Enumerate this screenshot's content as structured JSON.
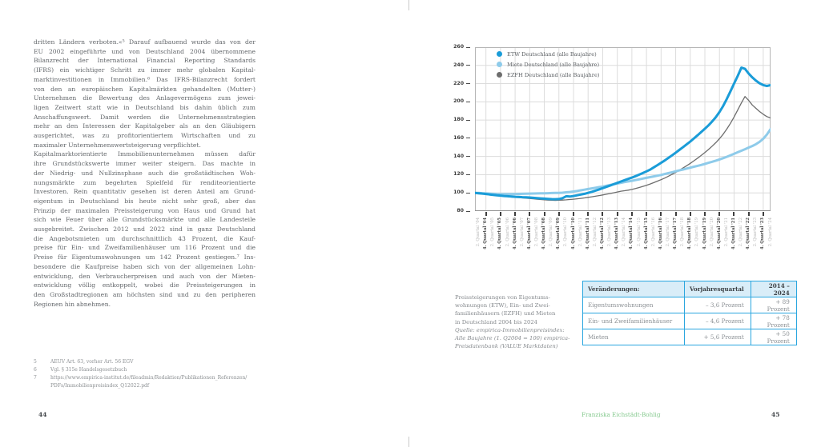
{
  "page_left": {
    "paragraphs": [
      {
        "lines": [
          "dritten Ländern verboten.«⁵ Darauf aufbauend wurde das von der",
          "EU 2002 eingeführte und von Deutschland 2004 übernommene",
          "Bilanzrecht der International Financial Reporting Standards",
          "(IFRS) ein wichtiger Schritt zu immer mehr globalen Kapital-",
          "marktinvestitionen in Immobilien.⁶ Das IFRS-Bilanzrecht fordert",
          "von den an europäischen Kapitalmärkten gehandelten (Mutter-)",
          "Unternehmen die Bewertung des Anlagevermögens zum jewei-",
          "ligen Zeitwert statt wie in Deutschland bis dahin üblich zum",
          "Anschaffungswert. Damit werden die Unternehmensstrategien",
          "mehr an den Interessen der Kapitalgeber als an den Gläubigern",
          "ausgerichtet, was zu profitorientiertem Wirtschaften und zu",
          "maximaler Unternehmenswertsteigerung verpflichtet."
        ]
      },
      {
        "lines": [
          "Kapitalmarktorientierte Immobilienunternehmen müssen dafür",
          "ihre Grundstückswerte immer weiter steigern. Das machte in",
          "der Niedrig- und Nullzinsphase auch die großstädtischen Woh-",
          "nungsmärkte zum begehrten Spielfeld für renditeorientierte",
          "Investoren. Rein quantitativ gesehen ist deren Anteil am Grund-",
          "eigentum in Deutschland bis heute nicht sehr groß, aber das",
          "Prinzip der maximalen Preissteigerung von Haus und Grund hat",
          "sich wie Feuer über alle Grundstücksmärkte und alle Landesteile",
          "ausgebreitet. Zwischen 2012 und 2022 sind in ganz Deutschland",
          "die Angebotsmieten um durchschnittlich 43 Prozent, die Kauf-",
          "preise für Ein- und Zweifamilienhäuser um 116 Prozent und die",
          "Preise für Eigentumswohnungen um 142 Prozent gestiegen.⁷ Ins-",
          "besondere die Kaufpreise haben sich von der allgemeinen Lohn-",
          "entwicklung, den Verbraucherpreisen und auch von der Mieten-",
          "entwicklung völlig entkoppelt, wobei die Preissteigerungen in",
          "den Großstadtregionen am höchsten sind und zu den peripheren",
          "Regionen hin abnehmen."
        ]
      }
    ],
    "footnotes": [
      {
        "num": "5",
        "lines": [
          "AEUV Art. 63, vorher Art. 56 EGV"
        ]
      },
      {
        "num": "6",
        "lines": [
          "Vgl. § 315e Handelsgesetzbuch"
        ]
      },
      {
        "num": "7",
        "lines": [
          "https://www.empirica-institut.de/fileadmin/Redaktion/Publikationen_Referenzen/",
          "PDFs/Immobilienpreisindex_Q12022.pdf"
        ]
      }
    ],
    "page_number": "44"
  },
  "page_right": {
    "chart_data": {
      "type": "line",
      "title": "",
      "description": "Preissteigerungen von Eigentumswohnungen (ETW), Ein- und Zweifamilienhäusern (EZFH) und Mieten in Deutschland 2004 bis 2024, Index 1. Q2004 = 100",
      "ylim": [
        80,
        260
      ],
      "y_ticks": [
        260,
        240,
        220,
        200,
        180,
        160,
        140,
        120,
        100,
        80
      ],
      "x_start": "1. Quartal 2004",
      "x_end": "2. Quartal 2024",
      "grid": "horizontal every 20, vertical yearly",
      "legend_position": "top-left",
      "x_tick_labels": [
        "2. Quartal '04",
        "4. Quartal '04",
        "2. Quartal '05",
        "4. Quartal '05",
        "2. Quartal '06",
        "4. Quartal '06",
        "2. Quartal '07",
        "4. Quartal '07",
        "2. Quartal '08",
        "4. Quartal '08",
        "2. Quartal '09",
        "4. Quartal '09",
        "2. Quartal '10",
        "4. Quartal '10",
        "2. Quartal '11",
        "4. Quartal '11",
        "2. Quartal '12",
        "4. Quartal '12",
        "2. Quartal '13",
        "4. Quartal '13",
        "2. Quartal '14",
        "4. Quartal '14",
        "2. Quartal '15",
        "4. Quartal '15",
        "2. Quartal '16",
        "4. Quartal '16",
        "2. Quartal '17",
        "4. Quartal '17",
        "2. Quartal '18",
        "4. Quartal '18",
        "2. Quartal '19",
        "4. Quartal '19",
        "2. Quartal '20",
        "4. Quartal '20",
        "2. Quartal '21",
        "4. Quartal '21",
        "2. Quartal '22",
        "4. Quartal '22",
        "2. Quartal '23",
        "4. Quartal '23",
        "2. Quartal '24"
      ],
      "series": [
        {
          "name": "ETW Deutschland (alle Baujahre)",
          "color": "#1a9cd8",
          "stroke_width": 3,
          "values": [
            100,
            99.6,
            99.2,
            98.8,
            98.3,
            97.8,
            97.4,
            97.0,
            96.6,
            96.3,
            96.0,
            95.7,
            95.5,
            95.3,
            95.1,
            94.9,
            94.6,
            94.3,
            94.0,
            93.7,
            93.4,
            93.2,
            93.1,
            93.3,
            94.2,
            96.3,
            96.0,
            96.6,
            97.4,
            98.2,
            99.0,
            100.0,
            101.2,
            102.5,
            103.8,
            105.2,
            106.6,
            108.0,
            109.5,
            111.0,
            112.5,
            114.0,
            115.4,
            116.8,
            118.4,
            120.0,
            121.8,
            123.6,
            125.6,
            128.0,
            130.5,
            133.0,
            135.6,
            138.4,
            141.2,
            144.2,
            147.2,
            150.2,
            153.2,
            156.4,
            159.8,
            163.2,
            166.8,
            170.4,
            174.2,
            178.4,
            183.2,
            188.8,
            195.4,
            203.0,
            211.4,
            220.0,
            228.4,
            237.5,
            236.2,
            231.0,
            226.8,
            223.2,
            220.4,
            218.4,
            217.4,
            218.4
          ]
        },
        {
          "name": "Miete Deutschland (alle Baujahre)",
          "color": "#8ecbea",
          "stroke_width": 3,
          "values": [
            100,
            100,
            99.7,
            99.4,
            99.2,
            99.0,
            98.8,
            98.7,
            98.6,
            98.6,
            98.7,
            98.8,
            98.9,
            99.0,
            99.1,
            99.2,
            99.3,
            99.4,
            99.5,
            99.6,
            99.7,
            99.8,
            99.9,
            100.0,
            100.2,
            100.6,
            101.0,
            101.5,
            102.1,
            102.8,
            103.5,
            104.2,
            104.9,
            105.6,
            106.3,
            107.0,
            107.8,
            108.7,
            109.5,
            110.3,
            111.1,
            111.9,
            112.6,
            113.3,
            114.1,
            114.9,
            115.7,
            116.5,
            117.3,
            118.1,
            118.9,
            119.7,
            120.7,
            121.7,
            122.7,
            123.7,
            124.7,
            125.7,
            126.7,
            127.7,
            128.7,
            129.7,
            130.7,
            131.8,
            133.0,
            134.2,
            135.4,
            136.7,
            138.1,
            139.6,
            141.2,
            142.9,
            144.6,
            146.3,
            148.0,
            149.8,
            151.5,
            153.5,
            156.0,
            159.5,
            164.0,
            170.0
          ]
        },
        {
          "name": "EZFH Deutschland (alle Baujahre)",
          "color": "#6d6d6d",
          "stroke_width": 1.3,
          "values": [
            100,
            99.4,
            98.9,
            98.4,
            97.9,
            97.4,
            97.0,
            96.6,
            96.2,
            95.8,
            95.4,
            95.1,
            94.8,
            94.5,
            94.2,
            93.9,
            93.5,
            93.1,
            92.7,
            92.4,
            92.1,
            91.9,
            91.8,
            91.9,
            92.1,
            92.4,
            92.7,
            93.1,
            93.5,
            94.0,
            94.5,
            95.1,
            95.7,
            96.3,
            97.0,
            97.7,
            98.5,
            99.3,
            100.1,
            101.0,
            101.9,
            102.4,
            103.0,
            103.8,
            104.8,
            105.9,
            107.1,
            108.4,
            109.8,
            111.3,
            112.9,
            114.5,
            116.3,
            118.3,
            120.4,
            122.6,
            124.9,
            127.3,
            129.8,
            132.4,
            135.2,
            138.1,
            141.1,
            144.3,
            147.7,
            151.3,
            155.2,
            159.5,
            164.4,
            170.0,
            176.3,
            183.3,
            191.0,
            198.8,
            205.8,
            201.5,
            196.5,
            192.8,
            189.3,
            186.3,
            183.8,
            182.3
          ]
        }
      ]
    },
    "caption": {
      "lines": [
        "Preissteigerungen von Eigentums-",
        "wohnungen (ETW), Ein- und Zwei-",
        "familienhäusern (EZFH) und Mieten",
        "in Deutschland 2004 bis 2024"
      ],
      "source_lines": [
        "Quelle: empirica-Immobilienpreisindex:",
        "Alle Baujahre (1. Q2004 = 100) empirica-",
        "Preisdatenbank (VALUE Marktdaten)"
      ]
    },
    "table": {
      "header": [
        "Veränderungen:",
        "Vorjahresquartal",
        "2014 – 2024"
      ],
      "rows": [
        [
          "Eigentumswohnungen",
          "– 3,6 Prozent",
          "+ 89 Prozent"
        ],
        [
          "Ein- und Zweifamilienhäuser",
          "– 4,6 Prozent",
          "+ 78 Prozent"
        ],
        [
          "Mieten",
          "+ 5,6 Prozent",
          "+ 50 Prozent"
        ]
      ]
    },
    "author": "Franziska Eichstädt-Bohlig",
    "page_number": "45"
  }
}
